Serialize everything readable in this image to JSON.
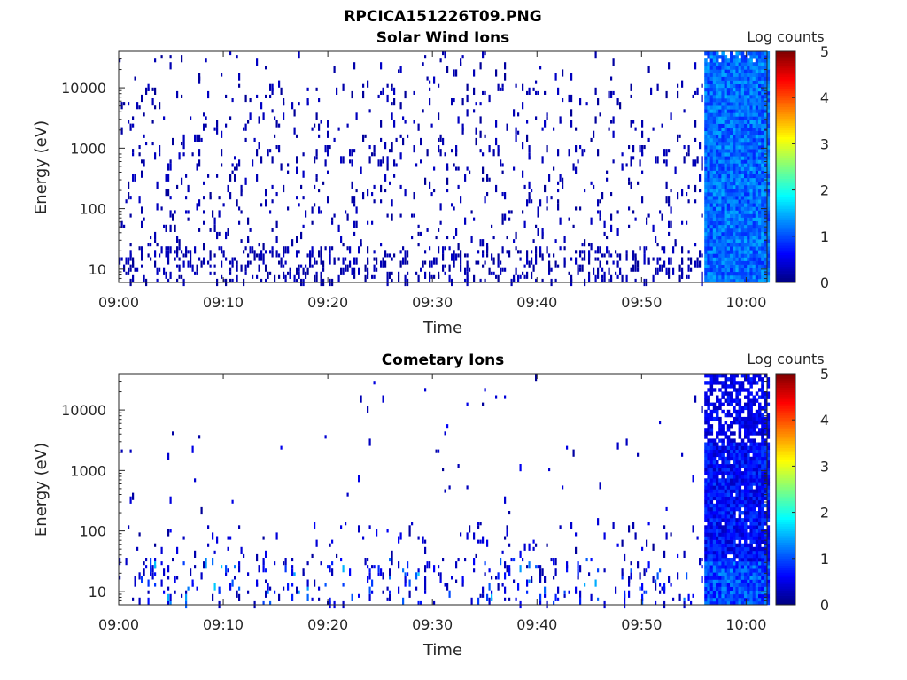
{
  "figure_title": "RPCICA151226T09.PNG",
  "colormap": [
    "#00007f",
    "#0000ff",
    "#007fff",
    "#00ffff",
    "#7fff7f",
    "#ffff00",
    "#ff7f00",
    "#ff0000",
    "#7f0000"
  ],
  "chart_data": [
    {
      "type": "heatmap",
      "title": "Solar Wind Ions",
      "xlabel": "Time",
      "ylabel": "Energy (eV)",
      "x_ticks": [
        "09:00",
        "09:10",
        "09:20",
        "09:30",
        "09:40",
        "09:50",
        "10:00"
      ],
      "x_range_minutes": [
        0,
        62
      ],
      "y_ticks": [
        "10",
        "100",
        "1000",
        "10000"
      ],
      "y_scale": "log",
      "y_range": [
        6,
        40000
      ],
      "colorbar": {
        "label": "Log counts",
        "ticks": [
          "0",
          "1",
          "2",
          "3",
          "4",
          "5"
        ],
        "range": [
          0,
          5
        ]
      },
      "dense_region_start_minute": 56,
      "sparse_level_log_counts": 0.1,
      "dense_level_log_counts": [
        0.8,
        1.5
      ]
    },
    {
      "type": "heatmap",
      "title": "Cometary Ions",
      "xlabel": "Time",
      "ylabel": "Energy (eV)",
      "x_ticks": [
        "09:00",
        "09:10",
        "09:20",
        "09:30",
        "09:40",
        "09:50",
        "10:00"
      ],
      "x_range_minutes": [
        0,
        62
      ],
      "y_ticks": [
        "10",
        "100",
        "1000",
        "10000"
      ],
      "y_scale": "log",
      "y_range": [
        6,
        40000
      ],
      "colorbar": {
        "label": "Log counts",
        "ticks": [
          "0",
          "1",
          "2",
          "3",
          "4",
          "5"
        ],
        "range": [
          0,
          5
        ]
      },
      "dense_region_start_minute": 56,
      "sparse_level_log_counts": [
        0.2,
        1.6
      ],
      "dense_level_log_counts": [
        0.3,
        1.4
      ]
    }
  ]
}
